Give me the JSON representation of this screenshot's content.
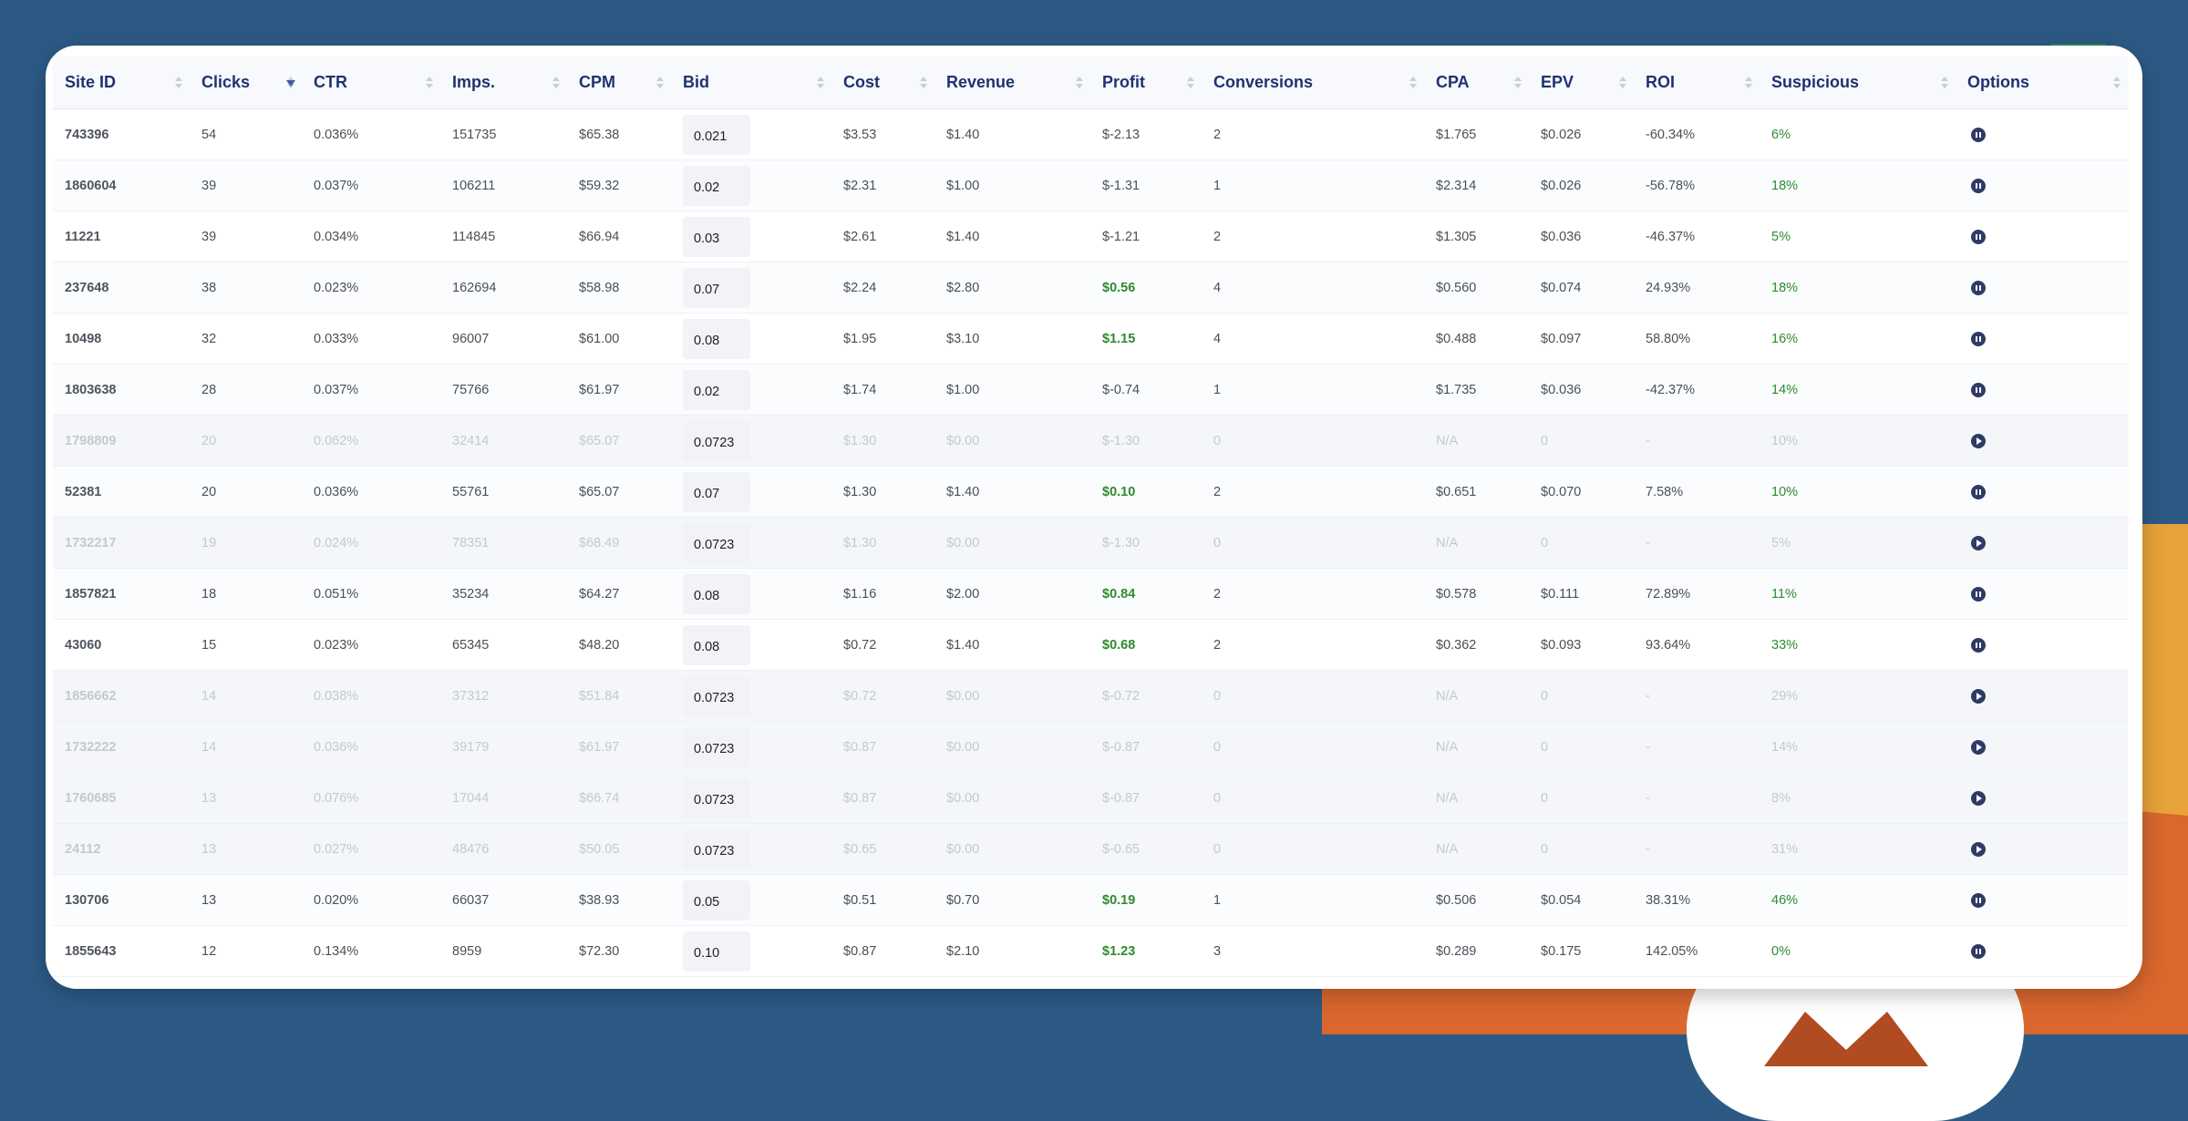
{
  "table": {
    "columns": [
      {
        "key": "site_id",
        "label": "Site ID"
      },
      {
        "key": "clicks",
        "label": "Clicks"
      },
      {
        "key": "ctr",
        "label": "CTR"
      },
      {
        "key": "imps",
        "label": "Imps."
      },
      {
        "key": "cpm",
        "label": "CPM"
      },
      {
        "key": "bid",
        "label": "Bid"
      },
      {
        "key": "cost",
        "label": "Cost"
      },
      {
        "key": "revenue",
        "label": "Revenue"
      },
      {
        "key": "profit",
        "label": "Profit"
      },
      {
        "key": "conversions",
        "label": "Conversions"
      },
      {
        "key": "cpa",
        "label": "CPA"
      },
      {
        "key": "epv",
        "label": "EPV"
      },
      {
        "key": "roi",
        "label": "ROI"
      },
      {
        "key": "suspicious",
        "label": "Suspicious"
      },
      {
        "key": "options",
        "label": "Options"
      }
    ],
    "sorted_column": "clicks",
    "sort_direction": "desc",
    "rows": [
      {
        "site_id": "743396",
        "clicks": "54",
        "ctr": "0.036%",
        "imps": "151735",
        "cpm": "$65.38",
        "bid": "0.021",
        "cost": "$3.53",
        "revenue": "$1.40",
        "profit": "$-2.13",
        "conversions": "2",
        "cpa": "$1.765",
        "epv": "$0.026",
        "roi": "-60.34%",
        "suspicious": "6%",
        "status": "active",
        "profit_positive": false
      },
      {
        "site_id": "1860604",
        "clicks": "39",
        "ctr": "0.037%",
        "imps": "106211",
        "cpm": "$59.32",
        "bid": "0.02",
        "cost": "$2.31",
        "revenue": "$1.00",
        "profit": "$-1.31",
        "conversions": "1",
        "cpa": "$2.314",
        "epv": "$0.026",
        "roi": "-56.78%",
        "suspicious": "18%",
        "status": "active",
        "profit_positive": false
      },
      {
        "site_id": "11221",
        "clicks": "39",
        "ctr": "0.034%",
        "imps": "114845",
        "cpm": "$66.94",
        "bid": "0.03",
        "cost": "$2.61",
        "revenue": "$1.40",
        "profit": "$-1.21",
        "conversions": "2",
        "cpa": "$1.305",
        "epv": "$0.036",
        "roi": "-46.37%",
        "suspicious": "5%",
        "status": "active",
        "profit_positive": false
      },
      {
        "site_id": "237648",
        "clicks": "38",
        "ctr": "0.023%",
        "imps": "162694",
        "cpm": "$58.98",
        "bid": "0.07",
        "cost": "$2.24",
        "revenue": "$2.80",
        "profit": "$0.56",
        "conversions": "4",
        "cpa": "$0.560",
        "epv": "$0.074",
        "roi": "24.93%",
        "suspicious": "18%",
        "status": "active",
        "profit_positive": true
      },
      {
        "site_id": "10498",
        "clicks": "32",
        "ctr": "0.033%",
        "imps": "96007",
        "cpm": "$61.00",
        "bid": "0.08",
        "cost": "$1.95",
        "revenue": "$3.10",
        "profit": "$1.15",
        "conversions": "4",
        "cpa": "$0.488",
        "epv": "$0.097",
        "roi": "58.80%",
        "suspicious": "16%",
        "status": "active",
        "profit_positive": true
      },
      {
        "site_id": "1803638",
        "clicks": "28",
        "ctr": "0.037%",
        "imps": "75766",
        "cpm": "$61.97",
        "bid": "0.02",
        "cost": "$1.74",
        "revenue": "$1.00",
        "profit": "$-0.74",
        "conversions": "1",
        "cpa": "$1.735",
        "epv": "$0.036",
        "roi": "-42.37%",
        "suspicious": "14%",
        "status": "active",
        "profit_positive": false
      },
      {
        "site_id": "1798809",
        "clicks": "20",
        "ctr": "0.062%",
        "imps": "32414",
        "cpm": "$65.07",
        "bid": "0.0723",
        "cost": "$1.30",
        "revenue": "$0.00",
        "profit": "$-1.30",
        "conversions": "0",
        "cpa": "N/A",
        "epv": "0",
        "roi": "-",
        "suspicious": "10%",
        "status": "paused",
        "profit_positive": false
      },
      {
        "site_id": "52381",
        "clicks": "20",
        "ctr": "0.036%",
        "imps": "55761",
        "cpm": "$65.07",
        "bid": "0.07",
        "cost": "$1.30",
        "revenue": "$1.40",
        "profit": "$0.10",
        "conversions": "2",
        "cpa": "$0.651",
        "epv": "$0.070",
        "roi": "7.58%",
        "suspicious": "10%",
        "status": "active",
        "profit_positive": true
      },
      {
        "site_id": "1732217",
        "clicks": "19",
        "ctr": "0.024%",
        "imps": "78351",
        "cpm": "$68.49",
        "bid": "0.0723",
        "cost": "$1.30",
        "revenue": "$0.00",
        "profit": "$-1.30",
        "conversions": "0",
        "cpa": "N/A",
        "epv": "0",
        "roi": "-",
        "suspicious": "5%",
        "status": "paused",
        "profit_positive": false
      },
      {
        "site_id": "1857821",
        "clicks": "18",
        "ctr": "0.051%",
        "imps": "35234",
        "cpm": "$64.27",
        "bid": "0.08",
        "cost": "$1.16",
        "revenue": "$2.00",
        "profit": "$0.84",
        "conversions": "2",
        "cpa": "$0.578",
        "epv": "$0.111",
        "roi": "72.89%",
        "suspicious": "11%",
        "status": "active",
        "profit_positive": true
      },
      {
        "site_id": "43060",
        "clicks": "15",
        "ctr": "0.023%",
        "imps": "65345",
        "cpm": "$48.20",
        "bid": "0.08",
        "cost": "$0.72",
        "revenue": "$1.40",
        "profit": "$0.68",
        "conversions": "2",
        "cpa": "$0.362",
        "epv": "$0.093",
        "roi": "93.64%",
        "suspicious": "33%",
        "status": "active",
        "profit_positive": true
      },
      {
        "site_id": "1856662",
        "clicks": "14",
        "ctr": "0.038%",
        "imps": "37312",
        "cpm": "$51.84",
        "bid": "0.0723",
        "cost": "$0.72",
        "revenue": "$0.00",
        "profit": "$-0.72",
        "conversions": "0",
        "cpa": "N/A",
        "epv": "0",
        "roi": "-",
        "suspicious": "29%",
        "status": "paused",
        "profit_positive": false
      },
      {
        "site_id": "1732222",
        "clicks": "14",
        "ctr": "0.036%",
        "imps": "39179",
        "cpm": "$61.97",
        "bid": "0.0723",
        "cost": "$0.87",
        "revenue": "$0.00",
        "profit": "$-0.87",
        "conversions": "0",
        "cpa": "N/A",
        "epv": "0",
        "roi": "-",
        "suspicious": "14%",
        "status": "paused",
        "profit_positive": false
      },
      {
        "site_id": "1760685",
        "clicks": "13",
        "ctr": "0.076%",
        "imps": "17044",
        "cpm": "$66.74",
        "bid": "0.0723",
        "cost": "$0.87",
        "revenue": "$0.00",
        "profit": "$-0.87",
        "conversions": "0",
        "cpa": "N/A",
        "epv": "0",
        "roi": "-",
        "suspicious": "8%",
        "status": "paused",
        "profit_positive": false
      },
      {
        "site_id": "24112",
        "clicks": "13",
        "ctr": "0.027%",
        "imps": "48476",
        "cpm": "$50.05",
        "bid": "0.0723",
        "cost": "$0.65",
        "revenue": "$0.00",
        "profit": "$-0.65",
        "conversions": "0",
        "cpa": "N/A",
        "epv": "0",
        "roi": "-",
        "suspicious": "31%",
        "status": "paused",
        "profit_positive": false
      },
      {
        "site_id": "130706",
        "clicks": "13",
        "ctr": "0.020%",
        "imps": "66037",
        "cpm": "$38.93",
        "bid": "0.05",
        "cost": "$0.51",
        "revenue": "$0.70",
        "profit": "$0.19",
        "conversions": "1",
        "cpa": "$0.506",
        "epv": "$0.054",
        "roi": "38.31%",
        "suspicious": "46%",
        "status": "active",
        "profit_positive": true
      },
      {
        "site_id": "1855643",
        "clicks": "12",
        "ctr": "0.134%",
        "imps": "8959",
        "cpm": "$72.30",
        "bid": "0.10",
        "cost": "$0.87",
        "revenue": "$2.10",
        "profit": "$1.23",
        "conversions": "3",
        "cpa": "$0.289",
        "epv": "$0.175",
        "roi": "142.05%",
        "suspicious": "0%",
        "status": "active",
        "profit_positive": true
      }
    ]
  },
  "icons": {
    "active_row_action": "pause-icon",
    "paused_row_action": "play-icon",
    "sort_indicator": "sort-icon"
  },
  "colors": {
    "background": "#2c5a85",
    "header_text": "#1f3270",
    "positive": "#2e8b2e",
    "action_icon": "#2f3b66",
    "accent_orange": "#e8a23a",
    "accent_dark_orange": "#d9672e"
  }
}
